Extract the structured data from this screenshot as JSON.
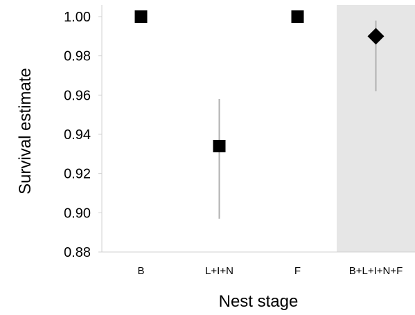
{
  "chart_data": {
    "type": "scatter",
    "xlabel": "Nest stage",
    "ylabel": "Survival estimate",
    "ylim": [
      0.88,
      1.0
    ],
    "yticks": [
      "0.88",
      "0.90",
      "0.92",
      "0.94",
      "0.96",
      "0.98",
      "1.00"
    ],
    "categories": [
      "B",
      "L+I+N",
      "F",
      "B+L+I+N+F"
    ],
    "points": [
      {
        "category": "B",
        "y": 1.0,
        "lower": null,
        "upper": null,
        "marker": "square"
      },
      {
        "category": "L+I+N",
        "y": 0.934,
        "lower": 0.897,
        "upper": 0.958,
        "marker": "square"
      },
      {
        "category": "F",
        "y": 1.0,
        "lower": null,
        "upper": null,
        "marker": "square"
      },
      {
        "category": "B+L+I+N+F",
        "y": 0.99,
        "lower": 0.962,
        "upper": 0.998,
        "marker": "diamond"
      }
    ],
    "highlighted_category": "B+L+I+N+F",
    "colors": {
      "marker": "#000000",
      "error_bar": "#b0b0b0",
      "highlight_band": "#e6e6e6",
      "axis": "#d0d0d0"
    },
    "grid": false,
    "legend": "none"
  }
}
